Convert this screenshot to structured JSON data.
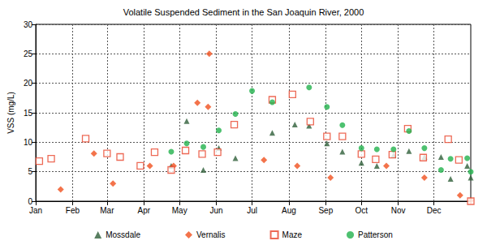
{
  "chart_data": {
    "type": "scatter",
    "title": "Volatile Suspended Sediment in the San Joaquin River, 2000",
    "y_label": "VSS (mg/L)",
    "xlim": [
      0,
      366
    ],
    "xticks": [
      {
        "value": 0,
        "label": "Jan"
      },
      {
        "value": 31,
        "label": "Feb"
      },
      {
        "value": 60,
        "label": "Mar"
      },
      {
        "value": 91,
        "label": "Apr"
      },
      {
        "value": 121,
        "label": "May"
      },
      {
        "value": 152,
        "label": "Jun"
      },
      {
        "value": 182,
        "label": "Jul"
      },
      {
        "value": 213,
        "label": "Aug"
      },
      {
        "value": 244,
        "label": "Sep"
      },
      {
        "value": 274,
        "label": "Oct"
      },
      {
        "value": 305,
        "label": "Nov"
      },
      {
        "value": 335,
        "label": "Dec"
      }
    ],
    "ylim": [
      0,
      30
    ],
    "yticks": [
      0,
      5,
      10,
      15,
      20,
      25,
      30
    ],
    "grid": true,
    "legend": "bottom",
    "series": [
      {
        "name": "Mossdale",
        "color": "#2f5f3a",
        "marker": "triangle",
        "x": [
          114,
          127,
          141,
          154,
          168,
          199,
          218,
          230,
          245,
          258,
          274,
          287,
          301,
          314,
          327,
          341,
          349,
          363,
          366
        ],
        "values": [
          6.0,
          13.6,
          5.3,
          9.0,
          7.3,
          11.6,
          13.0,
          12.8,
          9.8,
          8.4,
          6.5,
          6.0,
          7.8,
          8.5,
          7.5,
          7.5,
          3.8,
          6.0,
          4.0
        ]
      },
      {
        "name": "Vernalis",
        "color": "#f0501e",
        "marker": "diamond",
        "x": [
          21,
          49,
          65,
          96,
          116,
          136,
          145,
          146,
          192,
          220,
          248,
          295,
          327,
          357,
          366
        ],
        "values": [
          2.0,
          8.1,
          3.0,
          6.0,
          6.0,
          16.7,
          16.0,
          25.0,
          7.0,
          6.0,
          4.0,
          6.0,
          4.0,
          1.0,
          0.1
        ]
      },
      {
        "name": "Maze",
        "color": "#e8452c",
        "marker": "open_square",
        "x": [
          3,
          13,
          42,
          60,
          71,
          88,
          100,
          114,
          126,
          140,
          153,
          167,
          199,
          216,
          231,
          245,
          258,
          274,
          286,
          300,
          313,
          326,
          347,
          356,
          366
        ],
        "values": [
          6.8,
          7.2,
          10.6,
          8.1,
          7.5,
          6.0,
          8.3,
          5.3,
          8.6,
          8.0,
          8.3,
          13.0,
          17.2,
          18.1,
          13.5,
          11.0,
          11.0,
          8.0,
          7.1,
          7.9,
          12.3,
          7.4,
          10.5,
          7.0,
          0.0
        ]
      },
      {
        "name": "Patterson",
        "color": "#22b14c",
        "marker": "circle",
        "x": [
          114,
          127,
          141,
          154,
          168,
          182,
          199,
          230,
          245,
          258,
          274,
          287,
          301,
          314,
          327,
          341,
          349,
          363,
          366
        ],
        "values": [
          8.4,
          9.8,
          9.2,
          12.0,
          14.8,
          18.7,
          16.8,
          19.3,
          16.0,
          12.9,
          9.0,
          8.8,
          8.8,
          11.9,
          9.0,
          5.3,
          7.2,
          7.3,
          5.0
        ]
      }
    ]
  }
}
